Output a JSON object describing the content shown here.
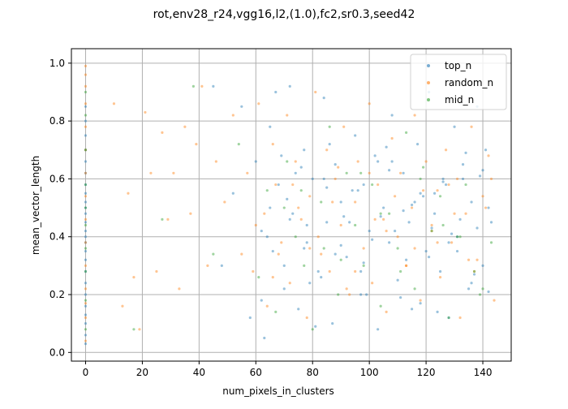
{
  "chart_data": {
    "type": "scatter",
    "title": "rot,env28_r24,vgg16,l2,(1.0),fc2,sr0.3,seed42",
    "xlabel": "num_pixels_in_clusters",
    "ylabel": "mean_vector_length",
    "xlim": [
      -5,
      150
    ],
    "ylim": [
      -0.03,
      1.05
    ],
    "xticks": [
      0,
      20,
      40,
      60,
      80,
      100,
      120,
      140
    ],
    "yticks": [
      0.0,
      0.2,
      0.4,
      0.6,
      0.8,
      1.0
    ],
    "xtick_labels": [
      "0",
      "20",
      "40",
      "60",
      "80",
      "100",
      "120",
      "140"
    ],
    "ytick_labels": [
      "0.0",
      "0.2",
      "0.4",
      "0.6",
      "0.8",
      "1.0"
    ],
    "grid": true,
    "legend_position": "top-right",
    "marker": "small dots, alpha ~0.4",
    "series": [
      {
        "name": "top_n",
        "color": "#1f77b4",
        "x": [
          0,
          0,
          0,
          0,
          0,
          0,
          0,
          0,
          0,
          0,
          0,
          0,
          0,
          0,
          0,
          0,
          0,
          0,
          0,
          0,
          0,
          0,
          0,
          0,
          0,
          45,
          48,
          52,
          55,
          58,
          60,
          62,
          63,
          65,
          66,
          68,
          70,
          72,
          73,
          75,
          77,
          78,
          80,
          82,
          84,
          85,
          87,
          88,
          90,
          92,
          95,
          97,
          98,
          100,
          102,
          103,
          105,
          107,
          108,
          110,
          112,
          114,
          115,
          117,
          118,
          120,
          121,
          123,
          125,
          126,
          128,
          130,
          131,
          133,
          135,
          136,
          138,
          140,
          141,
          143,
          62,
          65,
          70,
          74,
          78,
          83,
          86,
          90,
          94,
          99,
          104,
          108,
          113,
          119,
          124,
          129,
          133,
          137,
          142,
          67,
          72,
          76,
          81,
          88,
          96,
          101,
          106,
          111,
          116,
          122,
          127,
          131,
          139,
          64,
          69,
          79,
          85,
          93,
          98,
          107,
          112,
          118,
          123,
          128,
          134,
          138,
          142,
          71,
          77,
          84,
          91,
          97,
          103,
          109,
          115,
          121,
          126,
          132,
          136,
          140
        ],
        "y": [
          0.03,
          0.06,
          0.1,
          0.13,
          0.16,
          0.2,
          0.24,
          0.28,
          0.32,
          0.35,
          0.38,
          0.4,
          0.42,
          0.45,
          0.48,
          0.5,
          0.52,
          0.55,
          0.58,
          0.62,
          0.66,
          0.7,
          0.75,
          0.8,
          0.85,
          0.92,
          0.3,
          0.55,
          0.85,
          0.12,
          0.66,
          0.42,
          0.05,
          0.78,
          0.35,
          0.58,
          0.22,
          0.92,
          0.48,
          0.15,
          0.7,
          0.38,
          0.6,
          0.28,
          0.88,
          0.45,
          0.1,
          0.65,
          0.52,
          0.33,
          0.75,
          0.2,
          0.58,
          0.42,
          0.68,
          0.08,
          0.5,
          0.38,
          0.82,
          0.25,
          0.62,
          0.45,
          0.15,
          0.72,
          0.55,
          0.35,
          0.9,
          0.48,
          0.28,
          0.6,
          0.12,
          0.78,
          0.4,
          0.65,
          0.22,
          0.52,
          0.85,
          0.3,
          0.7,
          0.45,
          0.18,
          0.5,
          0.3,
          0.62,
          0.44,
          0.26,
          0.72,
          0.37,
          0.56,
          0.2,
          0.47,
          0.66,
          0.32,
          0.54,
          0.14,
          0.41,
          0.6,
          0.27,
          0.5,
          0.9,
          0.46,
          0.64,
          0.09,
          0.34,
          0.56,
          0.39,
          0.71,
          0.19,
          0.52,
          0.43,
          0.58,
          0.35,
          0.61,
          0.4,
          0.68,
          0.24,
          0.57,
          0.45,
          0.31,
          0.63,
          0.49,
          0.17,
          0.55,
          0.38,
          0.69,
          0.43,
          0.21,
          0.53,
          0.36,
          0.6,
          0.47,
          0.28,
          0.66,
          0.42,
          0.51,
          0.33,
          0.59,
          0.46,
          0.24,
          0.63
        ],
        "values_note": ""
      },
      {
        "name": "random_n",
        "color": "#ff7f0e",
        "x": [
          0,
          0,
          0,
          0,
          0,
          0,
          0,
          0,
          0,
          0,
          0,
          0,
          0,
          0,
          0,
          10,
          13,
          15,
          17,
          19,
          21,
          23,
          25,
          27,
          29,
          31,
          33,
          35,
          37,
          39,
          41,
          43,
          46,
          49,
          52,
          55,
          57,
          59,
          61,
          63,
          64,
          66,
          67,
          69,
          71,
          72,
          74,
          76,
          78,
          79,
          81,
          83,
          85,
          86,
          88,
          90,
          91,
          93,
          95,
          96,
          98,
          100,
          101,
          103,
          105,
          106,
          108,
          110,
          111,
          113,
          115,
          116,
          118,
          120,
          122,
          124,
          125,
          127,
          129,
          131,
          132,
          134,
          136,
          138,
          140,
          142,
          144,
          60,
          66,
          73,
          79,
          87,
          92,
          100,
          106,
          113,
          119,
          124,
          130,
          137,
          143,
          68,
          75,
          82,
          89,
          95,
          102,
          109,
          116,
          122,
          128,
          135,
          141
        ],
        "y": [
          0.04,
          0.12,
          0.22,
          0.3,
          0.38,
          0.46,
          0.54,
          0.62,
          0.7,
          0.78,
          0.86,
          0.92,
          0.96,
          0.99,
          0.17,
          0.86,
          0.16,
          0.55,
          0.26,
          0.08,
          0.83,
          0.62,
          0.28,
          0.76,
          0.46,
          0.62,
          0.22,
          0.78,
          0.48,
          0.72,
          0.92,
          0.3,
          0.66,
          0.52,
          0.82,
          0.34,
          0.62,
          0.28,
          0.86,
          0.48,
          0.16,
          0.72,
          0.58,
          0.38,
          0.82,
          0.24,
          0.66,
          0.46,
          0.12,
          0.54,
          0.9,
          0.34,
          0.7,
          0.28,
          0.6,
          0.44,
          0.78,
          0.2,
          0.52,
          0.66,
          0.36,
          0.86,
          0.24,
          0.58,
          0.46,
          0.14,
          0.74,
          0.4,
          0.62,
          0.3,
          0.5,
          0.82,
          0.18,
          0.66,
          0.42,
          0.56,
          0.26,
          0.7,
          0.38,
          0.6,
          0.12,
          0.48,
          0.78,
          0.32,
          0.54,
          0.68,
          0.18,
          0.44,
          0.26,
          0.58,
          0.36,
          0.52,
          0.22,
          0.62,
          0.42,
          0.3,
          0.56,
          0.38,
          0.48,
          0.28,
          0.6,
          0.34,
          0.5,
          0.4,
          0.64,
          0.28,
          0.46,
          0.54,
          0.36,
          0.44,
          0.58,
          0.32,
          0.5
        ],
        "values_note": ""
      },
      {
        "name": "mid_n",
        "color": "#2ca02c",
        "x": [
          0,
          0,
          0,
          0,
          0,
          0,
          0,
          0,
          0,
          0,
          17,
          27,
          38,
          45,
          54,
          61,
          64,
          67,
          71,
          74,
          77,
          80,
          83,
          86,
          89,
          92,
          95,
          98,
          101,
          104,
          107,
          110,
          113,
          116,
          119,
          122,
          125,
          128,
          131,
          134,
          137,
          140,
          143,
          70,
          84,
          97,
          111,
          126,
          139,
          76,
          90,
          104,
          118,
          132
        ],
        "y": [
          0.08,
          0.18,
          0.28,
          0.36,
          0.44,
          0.5,
          0.58,
          0.7,
          0.82,
          0.9,
          0.08,
          0.46,
          0.92,
          0.34,
          0.72,
          0.26,
          0.56,
          0.14,
          0.66,
          0.4,
          0.3,
          0.08,
          0.52,
          0.78,
          0.2,
          0.62,
          0.44,
          0.3,
          0.58,
          0.16,
          0.48,
          0.36,
          0.76,
          0.22,
          0.64,
          0.42,
          0.54,
          0.12,
          0.4,
          0.58,
          0.28,
          0.22,
          0.38,
          0.5,
          0.36,
          0.62,
          0.28,
          0.44,
          0.2,
          0.56,
          0.32,
          0.48,
          0.6,
          0.4
        ],
        "values_note": ""
      }
    ]
  }
}
